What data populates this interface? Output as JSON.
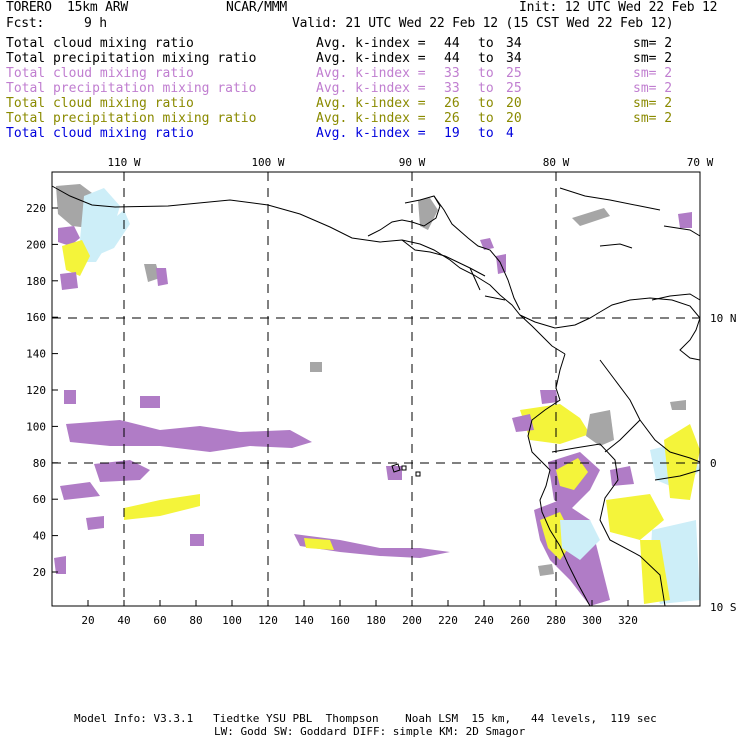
{
  "header": {
    "model": "TORERO  15km ARW",
    "center": "NCAR/MMM",
    "init": "Init: 12 UTC Wed 22 Feb 12",
    "fcst_label": "Fcst:",
    "fcst_value": "9 h",
    "valid": "Valid: 21 UTC Wed 22 Feb 12 (15 CST Wed 22 Feb 12)"
  },
  "legend": [
    {
      "field": "Total cloud mixing ratio",
      "kindex": "Avg. k-index =",
      "from": "44",
      "to_word": "to",
      "to": "34",
      "sm": "sm= 2",
      "color": "#000000"
    },
    {
      "field": "Total precipitation mixing ratio",
      "kindex": "Avg. k-index =",
      "from": "44",
      "to_word": "to",
      "to": "34",
      "sm": "sm= 2",
      "color": "#000000"
    },
    {
      "field": "Total cloud mixing ratio",
      "kindex": "Avg. k-index =",
      "from": "33",
      "to_word": "to",
      "to": "25",
      "sm": "sm= 2",
      "color": "#c07ed0"
    },
    {
      "field": "Total precipitation mixing ratio",
      "kindex": "Avg. k-index =",
      "from": "33",
      "to_word": "to",
      "to": "25",
      "sm": "sm= 2",
      "color": "#c07ed0"
    },
    {
      "field": "Total cloud mixing ratio",
      "kindex": "Avg. k-index =",
      "from": "26",
      "to_word": "to",
      "to": "20",
      "sm": "sm= 2",
      "color": "#8a8a00"
    },
    {
      "field": "Total precipitation mixing ratio",
      "kindex": "Avg. k-index =",
      "from": "26",
      "to_word": "to",
      "to": "20",
      "sm": "sm= 2",
      "color": "#8a8a00"
    },
    {
      "field": "Total cloud mixing ratio",
      "kindex": "Avg. k-index =",
      "from": "19",
      "to_word": "to",
      "to": "4",
      "sm": "",
      "color": "#0000dd"
    }
  ],
  "map": {
    "lon_labels": [
      "110 W",
      "100 W",
      "90 W",
      "80 W",
      "70 W"
    ],
    "lat_labels": [
      "10 N",
      "0",
      "10 S"
    ],
    "x_ticks": [
      "20",
      "40",
      "60",
      "80",
      "100",
      "120",
      "140",
      "160",
      "180",
      "200",
      "220",
      "240",
      "260",
      "280",
      "300",
      "320"
    ],
    "y_ticks": [
      "20",
      "40",
      "60",
      "80",
      "100",
      "120",
      "140",
      "160",
      "180",
      "200",
      "220"
    ],
    "colors": {
      "gray": "#a6a6a6",
      "purple": "#b07cc6",
      "yellow": "#f4f43a",
      "cyan": "#cdeef8",
      "grid": "#000000"
    }
  },
  "footer": {
    "line1": "Model Info: V3.3.1   Tiedtke YSU PBL  Thompson    Noah LSM  15 km,   44 levels,  119 sec",
    "line2": "LW: Godd SW: Goddard DIFF: simple KM: 2D Smagor"
  }
}
